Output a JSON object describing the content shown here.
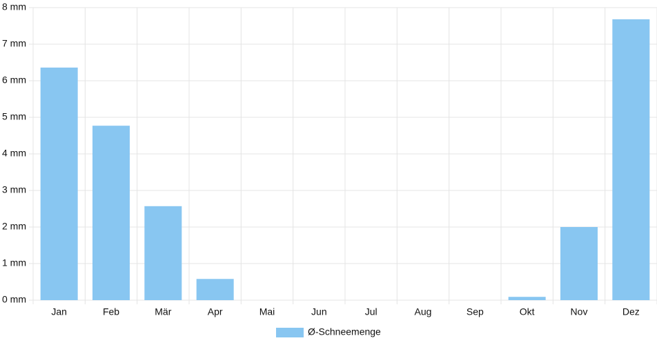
{
  "chart_data": {
    "type": "bar",
    "categories": [
      "Jan",
      "Feb",
      "Mär",
      "Apr",
      "Mai",
      "Jun",
      "Jul",
      "Aug",
      "Sep",
      "Okt",
      "Nov",
      "Dez"
    ],
    "series": [
      {
        "name": "Ø-Schneemenge",
        "color": "#88c6f1",
        "values": [
          6.36,
          4.77,
          2.57,
          0.58,
          0,
          0,
          0,
          0,
          0,
          0.09,
          2.0,
          7.68
        ]
      }
    ],
    "ylim": [
      0,
      8
    ],
    "yticks": [
      {
        "value": 0,
        "label": "0 mm"
      },
      {
        "value": 1,
        "label": "1 mm"
      },
      {
        "value": 2,
        "label": "2 mm"
      },
      {
        "value": 3,
        "label": "3 mm"
      },
      {
        "value": 4,
        "label": "4 mm"
      },
      {
        "value": 5,
        "label": "5 mm"
      },
      {
        "value": 6,
        "label": "6 mm"
      },
      {
        "value": 7,
        "label": "7 mm"
      },
      {
        "value": 8,
        "label": "8 mm"
      }
    ],
    "grid": true
  }
}
